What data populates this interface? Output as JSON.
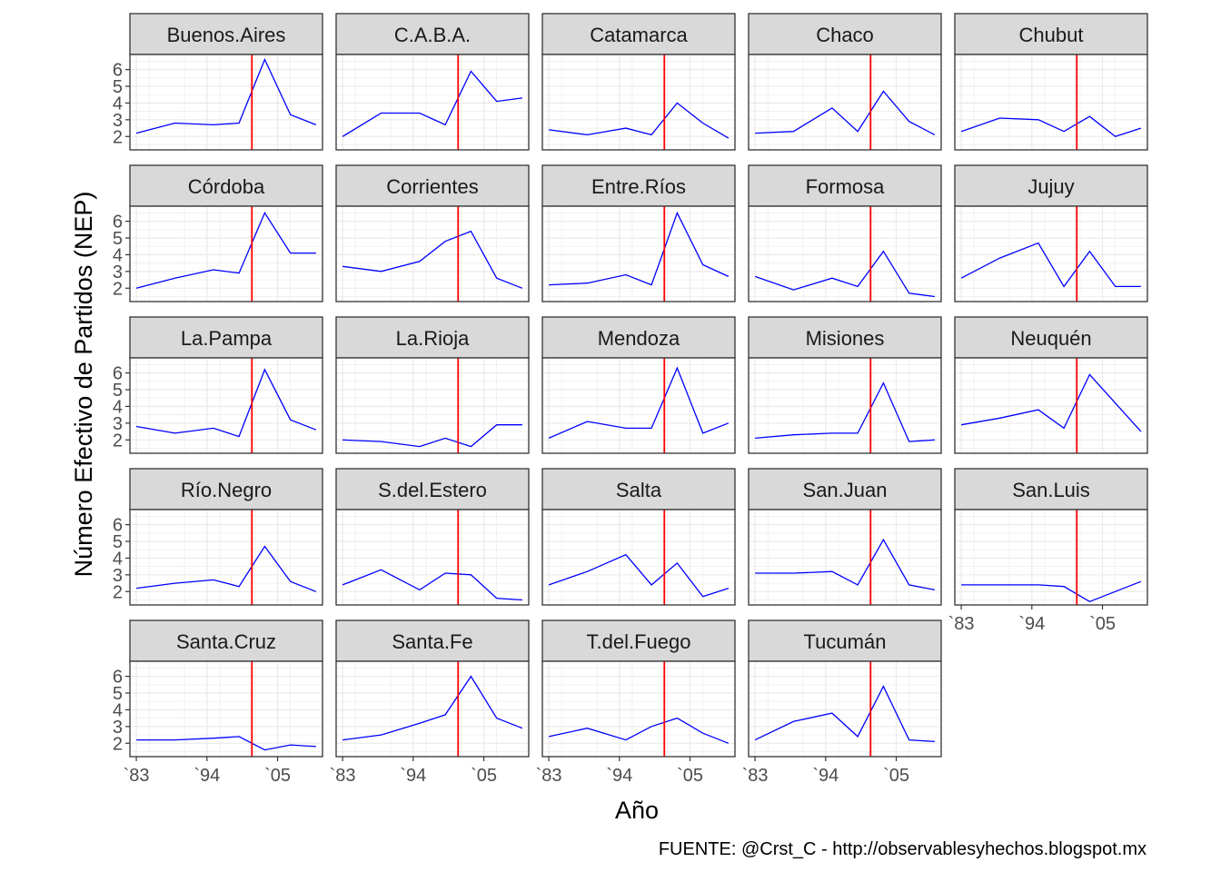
{
  "chart_data": {
    "type": "line",
    "layout": "facet-grid",
    "ncol": 5,
    "xlabel": "Año",
    "ylabel": "Número Efectivo de Partidos (NEP)",
    "caption": "FUENTE: @Crst_C - http://observablesyhechos.blogspot.mx",
    "x": [
      1983,
      1989,
      1995,
      1999,
      2003,
      2007,
      2011
    ],
    "x_ticks": [
      1983,
      1994,
      2005
    ],
    "x_tick_labels": [
      "`83",
      "`94",
      "`05"
    ],
    "y_ticks": [
      2,
      3,
      4,
      5,
      6
    ],
    "xlim": [
      1982,
      2012
    ],
    "ylim": [
      1.2,
      6.9
    ],
    "vline_x": 2001,
    "colors": {
      "line": "#0000ff",
      "vline": "#ff0000",
      "strip_bg": "#d9d9d9",
      "grid": "#ebebeb",
      "border": "#333333"
    },
    "grid": true,
    "panels": [
      {
        "name": "Buenos.Aires",
        "values": [
          2.2,
          2.8,
          2.7,
          2.8,
          6.6,
          3.3,
          2.7
        ]
      },
      {
        "name": "C.A.B.A.",
        "values": [
          2.0,
          3.4,
          3.4,
          2.7,
          5.9,
          4.1,
          4.3
        ]
      },
      {
        "name": "Catamarca",
        "values": [
          2.4,
          2.1,
          2.5,
          2.1,
          4.0,
          2.8,
          1.9
        ]
      },
      {
        "name": "Chaco",
        "values": [
          2.2,
          2.3,
          3.7,
          2.3,
          4.7,
          2.9,
          2.1
        ]
      },
      {
        "name": "Chubut",
        "values": [
          2.3,
          3.1,
          3.0,
          2.3,
          3.2,
          2.0,
          2.5
        ]
      },
      {
        "name": "Córdoba",
        "values": [
          2.0,
          2.6,
          3.1,
          2.9,
          6.5,
          4.1,
          4.1
        ]
      },
      {
        "name": "Corrientes",
        "values": [
          3.3,
          3.0,
          3.6,
          4.8,
          5.4,
          2.6,
          2.0
        ]
      },
      {
        "name": "Entre.Ríos",
        "values": [
          2.2,
          2.3,
          2.8,
          2.2,
          6.5,
          3.4,
          2.7
        ]
      },
      {
        "name": "Formosa",
        "values": [
          2.7,
          1.9,
          2.6,
          2.1,
          4.2,
          1.7,
          1.5
        ]
      },
      {
        "name": "Jujuy",
        "values": [
          2.6,
          3.8,
          4.7,
          2.1,
          4.2,
          2.1,
          2.1
        ]
      },
      {
        "name": "La.Pampa",
        "values": [
          2.8,
          2.4,
          2.7,
          2.2,
          6.2,
          3.2,
          2.6
        ]
      },
      {
        "name": "La.Rioja",
        "values": [
          2.0,
          1.9,
          1.6,
          2.1,
          1.6,
          2.9,
          2.9
        ]
      },
      {
        "name": "Mendoza",
        "values": [
          2.1,
          3.1,
          2.7,
          2.7,
          6.3,
          2.4,
          3.0
        ]
      },
      {
        "name": "Misiones",
        "values": [
          2.1,
          2.3,
          2.4,
          2.4,
          5.4,
          1.9,
          2.0
        ]
      },
      {
        "name": "Neuquén",
        "values": [
          2.9,
          3.3,
          3.8,
          2.7,
          5.9,
          null,
          2.5
        ]
      },
      {
        "name": "Río.Negro",
        "values": [
          2.2,
          2.5,
          2.7,
          2.3,
          4.7,
          2.6,
          2.0
        ]
      },
      {
        "name": "S.del.Estero",
        "values": [
          2.4,
          3.3,
          2.1,
          3.1,
          3.0,
          1.6,
          1.5
        ]
      },
      {
        "name": "Salta",
        "values": [
          2.4,
          3.2,
          4.2,
          2.4,
          3.7,
          1.7,
          2.2
        ]
      },
      {
        "name": "San.Juan",
        "values": [
          3.1,
          3.1,
          3.2,
          2.4,
          5.1,
          2.4,
          2.1
        ]
      },
      {
        "name": "San.Luis",
        "values": [
          2.4,
          2.4,
          2.4,
          2.3,
          1.4,
          null,
          2.6
        ]
      },
      {
        "name": "Santa.Cruz",
        "values": [
          2.2,
          2.2,
          2.3,
          2.4,
          1.6,
          1.9,
          1.8
        ]
      },
      {
        "name": "Santa.Fe",
        "values": [
          2.2,
          2.5,
          3.2,
          3.7,
          6.0,
          3.5,
          2.9
        ]
      },
      {
        "name": "T.del.Fuego",
        "values": [
          2.4,
          2.9,
          2.2,
          3.0,
          3.5,
          2.6,
          2.0
        ]
      },
      {
        "name": "Tucumán",
        "values": [
          2.2,
          3.3,
          3.8,
          2.4,
          5.4,
          2.2,
          2.1
        ]
      }
    ]
  }
}
